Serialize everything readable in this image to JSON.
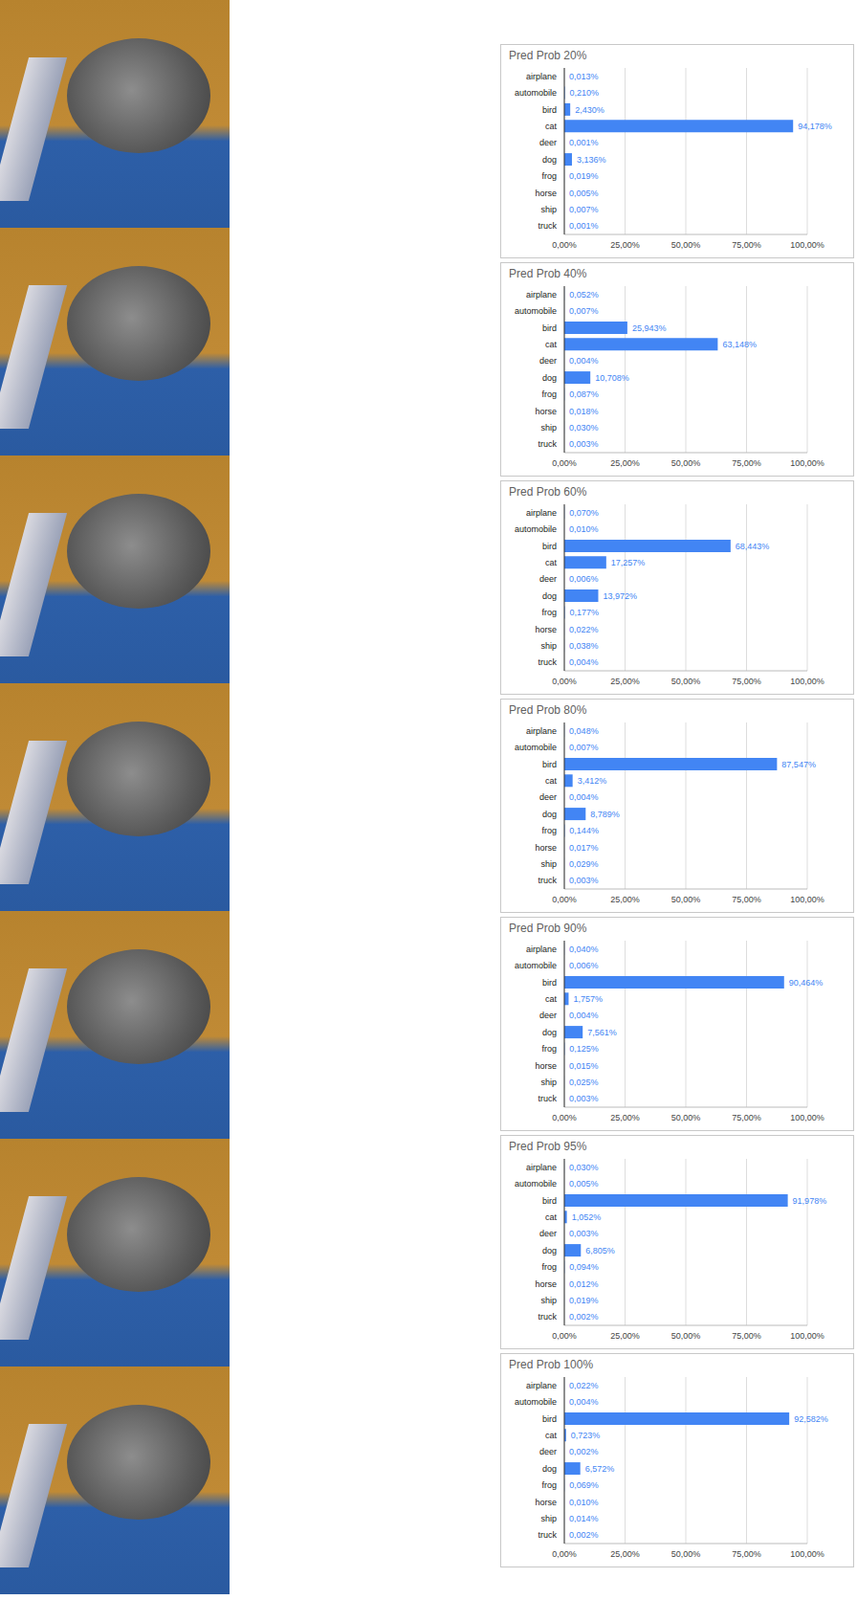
{
  "chart_data": [
    {
      "type": "bar",
      "title": "Pred Prob 20%",
      "orientation": "horizontal",
      "color": "#4285f4",
      "grid": true,
      "data_labels": true,
      "categories": [
        "airplane",
        "automobile",
        "bird",
        "cat",
        "deer",
        "dog",
        "frog",
        "horse",
        "ship",
        "truck"
      ],
      "values": [
        0.013,
        0.21,
        2.43,
        94.178,
        0.001,
        3.136,
        0.019,
        0.005,
        0.007,
        0.001
      ],
      "value_labels": [
        "0,013%",
        "0,210%",
        "2,430%",
        "94,178%",
        "0,001%",
        "3,136%",
        "0,019%",
        "0,005%",
        "0,007%",
        "0,001%"
      ],
      "xlim": [
        0,
        100
      ],
      "xticks": [
        {
          "value": 0,
          "label": "0,00%"
        },
        {
          "value": 25,
          "label": "25,00%"
        },
        {
          "value": 50,
          "label": "50,00%"
        },
        {
          "value": 75,
          "label": "75,00%"
        },
        {
          "value": 100,
          "label": "100,00%"
        }
      ]
    },
    {
      "type": "bar",
      "title": "Pred Prob 40%",
      "orientation": "horizontal",
      "color": "#4285f4",
      "grid": true,
      "data_labels": true,
      "categories": [
        "airplane",
        "automobile",
        "bird",
        "cat",
        "deer",
        "dog",
        "frog",
        "horse",
        "ship",
        "truck"
      ],
      "values": [
        0.052,
        0.007,
        25.943,
        63.148,
        0.004,
        10.708,
        0.087,
        0.018,
        0.03,
        0.003
      ],
      "value_labels": [
        "0,052%",
        "0,007%",
        "25,943%",
        "63,148%",
        "0,004%",
        "10,708%",
        "0,087%",
        "0,018%",
        "0,030%",
        "0,003%"
      ],
      "xlim": [
        0,
        100
      ],
      "xticks": [
        {
          "value": 0,
          "label": "0,00%"
        },
        {
          "value": 25,
          "label": "25,00%"
        },
        {
          "value": 50,
          "label": "50,00%"
        },
        {
          "value": 75,
          "label": "75,00%"
        },
        {
          "value": 100,
          "label": "100,00%"
        }
      ]
    },
    {
      "type": "bar",
      "title": "Pred Prob 60%",
      "orientation": "horizontal",
      "color": "#4285f4",
      "grid": true,
      "data_labels": true,
      "categories": [
        "airplane",
        "automobile",
        "bird",
        "cat",
        "deer",
        "dog",
        "frog",
        "horse",
        "ship",
        "truck"
      ],
      "values": [
        0.07,
        0.01,
        68.443,
        17.257,
        0.006,
        13.972,
        0.177,
        0.022,
        0.038,
        0.004
      ],
      "value_labels": [
        "0,070%",
        "0,010%",
        "68,443%",
        "17,257%",
        "0,006%",
        "13,972%",
        "0,177%",
        "0,022%",
        "0,038%",
        "0,004%"
      ],
      "xlim": [
        0,
        100
      ],
      "xticks": [
        {
          "value": 0,
          "label": "0,00%"
        },
        {
          "value": 25,
          "label": "25,00%"
        },
        {
          "value": 50,
          "label": "50,00%"
        },
        {
          "value": 75,
          "label": "75,00%"
        },
        {
          "value": 100,
          "label": "100,00%"
        }
      ]
    },
    {
      "type": "bar",
      "title": "Pred Prob 80%",
      "orientation": "horizontal",
      "color": "#4285f4",
      "grid": true,
      "data_labels": true,
      "categories": [
        "airplane",
        "automobile",
        "bird",
        "cat",
        "deer",
        "dog",
        "frog",
        "horse",
        "ship",
        "truck"
      ],
      "values": [
        0.048,
        0.007,
        87.547,
        3.412,
        0.004,
        8.789,
        0.144,
        0.017,
        0.029,
        0.003
      ],
      "value_labels": [
        "0,048%",
        "0,007%",
        "87,547%",
        "3,412%",
        "0,004%",
        "8,789%",
        "0,144%",
        "0,017%",
        "0,029%",
        "0,003%"
      ],
      "xlim": [
        0,
        100
      ],
      "xticks": [
        {
          "value": 0,
          "label": "0,00%"
        },
        {
          "value": 25,
          "label": "25,00%"
        },
        {
          "value": 50,
          "label": "50,00%"
        },
        {
          "value": 75,
          "label": "75,00%"
        },
        {
          "value": 100,
          "label": "100,00%"
        }
      ]
    },
    {
      "type": "bar",
      "title": "Pred Prob 90%",
      "orientation": "horizontal",
      "color": "#4285f4",
      "grid": true,
      "data_labels": true,
      "categories": [
        "airplane",
        "automobile",
        "bird",
        "cat",
        "deer",
        "dog",
        "frog",
        "horse",
        "ship",
        "truck"
      ],
      "values": [
        0.04,
        0.006,
        90.464,
        1.757,
        0.004,
        7.561,
        0.125,
        0.015,
        0.025,
        0.003
      ],
      "value_labels": [
        "0,040%",
        "0,006%",
        "90,464%",
        "1,757%",
        "0,004%",
        "7,561%",
        "0,125%",
        "0,015%",
        "0,025%",
        "0,003%"
      ],
      "xlim": [
        0,
        100
      ],
      "xticks": [
        {
          "value": 0,
          "label": "0,00%"
        },
        {
          "value": 25,
          "label": "25,00%"
        },
        {
          "value": 50,
          "label": "50,00%"
        },
        {
          "value": 75,
          "label": "75,00%"
        },
        {
          "value": 100,
          "label": "100,00%"
        }
      ]
    },
    {
      "type": "bar",
      "title": "Pred Prob 95%",
      "orientation": "horizontal",
      "color": "#4285f4",
      "grid": true,
      "data_labels": true,
      "categories": [
        "airplane",
        "automobile",
        "bird",
        "cat",
        "deer",
        "dog",
        "frog",
        "horse",
        "ship",
        "truck"
      ],
      "values": [
        0.03,
        0.005,
        91.978,
        1.052,
        0.003,
        6.805,
        0.094,
        0.012,
        0.019,
        0.002
      ],
      "value_labels": [
        "0,030%",
        "0,005%",
        "91,978%",
        "1,052%",
        "0,003%",
        "6,805%",
        "0,094%",
        "0,012%",
        "0,019%",
        "0,002%"
      ],
      "xlim": [
        0,
        100
      ],
      "xticks": [
        {
          "value": 0,
          "label": "0,00%"
        },
        {
          "value": 25,
          "label": "25,00%"
        },
        {
          "value": 50,
          "label": "50,00%"
        },
        {
          "value": 75,
          "label": "75,00%"
        },
        {
          "value": 100,
          "label": "100,00%"
        }
      ]
    },
    {
      "type": "bar",
      "title": "Pred Prob 100%",
      "orientation": "horizontal",
      "color": "#4285f4",
      "grid": true,
      "data_labels": true,
      "categories": [
        "airplane",
        "automobile",
        "bird",
        "cat",
        "deer",
        "dog",
        "frog",
        "horse",
        "ship",
        "truck"
      ],
      "values": [
        0.022,
        0.004,
        92.582,
        0.723,
        0.002,
        6.572,
        0.069,
        0.01,
        0.014,
        0.002
      ],
      "value_labels": [
        "0,022%",
        "0,004%",
        "92,582%",
        "0,723%",
        "0,002%",
        "6,572%",
        "0,069%",
        "0,010%",
        "0,014%",
        "0,002%"
      ],
      "xlim": [
        0,
        100
      ],
      "xticks": [
        {
          "value": 0,
          "label": "0,00%"
        },
        {
          "value": 25,
          "label": "25,00%"
        },
        {
          "value": 50,
          "label": "50,00%"
        },
        {
          "value": 75,
          "label": "75,00%"
        },
        {
          "value": 100,
          "label": "100,00%"
        }
      ]
    }
  ]
}
